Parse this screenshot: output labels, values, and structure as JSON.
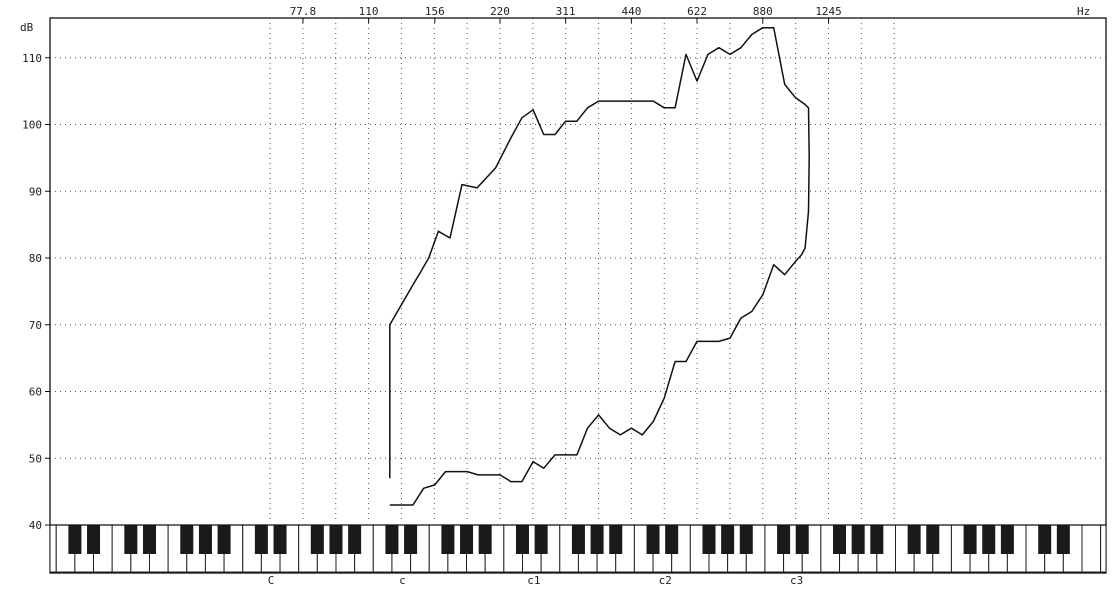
{
  "chart_data": {
    "type": "line",
    "title": "",
    "xlabel": "",
    "ylabel": "dB",
    "x_unit": "Hz",
    "x_scale": "log",
    "xlim": [
      55,
      1400
    ],
    "ylim": [
      40,
      115
    ],
    "grid": true,
    "x_ticks": [
      77.8,
      110,
      156,
      220,
      311,
      440,
      622,
      880,
      1245
    ],
    "x_tick_labels": [
      "77.8",
      "110",
      "156",
      "220",
      "311",
      "440",
      "622",
      "880",
      "1245"
    ],
    "y_ticks": [
      40,
      50,
      60,
      70,
      80,
      90,
      100,
      110
    ],
    "y_tick_labels": [
      "40",
      "50",
      "60",
      "70",
      "80",
      "90",
      "100",
      "110"
    ],
    "note_labels": [
      {
        "label": "C",
        "hz": 65.4
      },
      {
        "label": "c",
        "hz": 130.8
      },
      {
        "label": "c1",
        "hz": 261.6
      },
      {
        "label": "c2",
        "hz": 523.3
      },
      {
        "label": "c3",
        "hz": 1046.5
      }
    ],
    "series": [
      {
        "values_x": [
          123,
          123,
          139,
          145,
          151,
          159,
          169,
          180,
          195,
          215,
          233,
          247,
          262,
          277,
          294,
          311,
          330,
          349,
          370,
          392,
          415,
          440,
          466,
          494,
          523,
          554,
          587,
          622,
          659,
          698,
          740,
          784,
          831,
          880,
          932,
          988,
          1046,
          1100,
          1120,
          1124,
          1120,
          1100,
          1080,
          1046,
          988,
          932,
          880,
          831,
          784,
          740,
          698,
          659,
          622,
          587,
          554,
          523,
          494,
          466,
          440,
          415,
          392,
          370,
          349,
          330,
          311,
          294,
          277,
          262,
          247,
          233,
          220,
          208,
          196,
          185,
          175,
          165,
          156,
          147,
          139,
          131,
          123
        ],
        "values_y": [
          47,
          70,
          76,
          78,
          80,
          84,
          83,
          91,
          90.5,
          93.5,
          98,
          101,
          102.2,
          98.5,
          98.5,
          100.5,
          100.5,
          102.5,
          103.5,
          103.5,
          103.5,
          103.5,
          103.5,
          103.5,
          102.5,
          102.5,
          110.5,
          106.5,
          110.5,
          111.5,
          110.5,
          111.5,
          113.5,
          114.5,
          114.5,
          106,
          104,
          103,
          102.5,
          95,
          87,
          81.5,
          80.5,
          79.5,
          77.5,
          79,
          74.5,
          72,
          71,
          68,
          67.5,
          67.5,
          67.5,
          64.5,
          64.5,
          59,
          55.5,
          53.5,
          54.5,
          53.5,
          54.5,
          56.5,
          54.5,
          50.5,
          50.5,
          50.5,
          48.5,
          49.5,
          46.5,
          46.5,
          47.5,
          47.5,
          47.5,
          48,
          48,
          48,
          46,
          45.5,
          43,
          43,
          43
        ]
      }
    ]
  }
}
